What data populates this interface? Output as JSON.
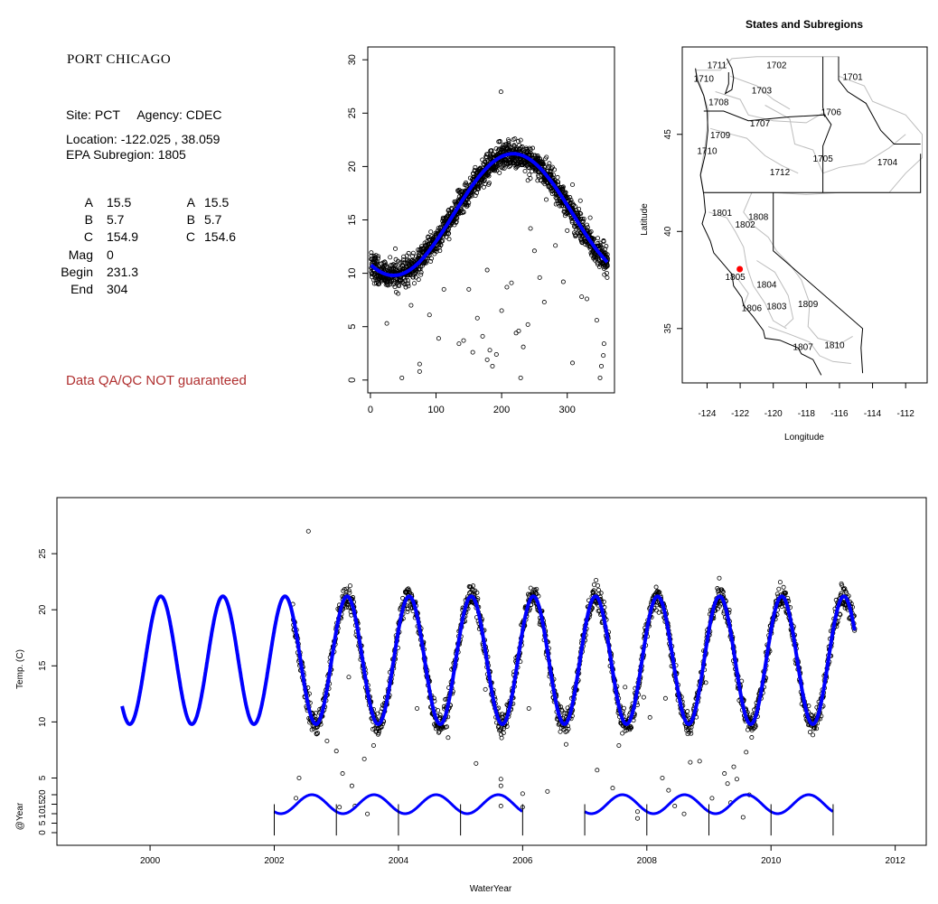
{
  "info": {
    "site_name": "PORT CHICAGO",
    "site_line": "Site: PCT     Agency: CDEC",
    "location_line": "Location: -122.025 , 38.059",
    "subregion_line": "EPA Subregion: 1805",
    "params_left": [
      {
        "label": "A",
        "value": "15.5"
      },
      {
        "label": "B",
        "value": "5.7"
      },
      {
        "label": "C",
        "value": "154.9"
      },
      {
        "label": "Mag",
        "value": "0"
      },
      {
        "label": "Begin",
        "value": "231.3"
      },
      {
        "label": "End",
        "value": "304"
      }
    ],
    "params_right": [
      {
        "label": "A",
        "value": "15.5"
      },
      {
        "label": "B",
        "value": "5.7"
      },
      {
        "label": "C",
        "value": "154.6"
      }
    ],
    "disclaimer": "Data QA/QC NOT guaranteed",
    "disclaimer_color": "#b03030"
  },
  "chart_data": [
    {
      "type": "scatter",
      "title": "",
      "xlabel": "",
      "ylabel": "",
      "xlim": [
        -4,
        372
      ],
      "ylim": [
        -1.2,
        31.2
      ],
      "xticks": [
        0,
        100,
        200,
        300
      ],
      "yticks": [
        0,
        5,
        10,
        15,
        20,
        25,
        30
      ],
      "fit_curve": {
        "A": 15.5,
        "B": 5.7,
        "C": 154.6,
        "color": "#0000ff"
      },
      "outliers": [
        [
          199,
          27
        ],
        [
          75,
          1.5
        ],
        [
          75,
          0.8
        ],
        [
          48,
          0.2
        ],
        [
          62,
          7
        ],
        [
          104,
          3.9
        ],
        [
          112,
          8.5
        ],
        [
          135,
          3.4
        ],
        [
          142,
          3.7
        ],
        [
          156,
          2.6
        ],
        [
          163,
          5.8
        ],
        [
          171,
          4.1
        ],
        [
          178,
          1.9
        ],
        [
          182,
          2.8
        ],
        [
          186,
          1.3
        ],
        [
          192,
          2.4
        ],
        [
          200,
          6.5
        ],
        [
          208,
          8.7
        ],
        [
          215,
          9.1
        ],
        [
          222,
          4.4
        ],
        [
          226,
          4.6
        ],
        [
          229,
          0.2
        ],
        [
          233,
          3.1
        ],
        [
          240,
          5.2
        ],
        [
          244,
          14.2
        ],
        [
          250,
          12.1
        ],
        [
          258,
          9.6
        ],
        [
          265,
          7.3
        ],
        [
          282,
          12.6
        ],
        [
          294,
          9.2
        ],
        [
          300,
          14.0
        ],
        [
          308,
          1.6
        ],
        [
          322,
          7.8
        ],
        [
          330,
          7.6
        ],
        [
          338,
          12.7
        ],
        [
          345,
          5.6
        ],
        [
          350,
          0.2
        ],
        [
          352,
          1.3
        ],
        [
          355,
          2.3
        ],
        [
          25,
          5.3
        ],
        [
          30,
          11.5
        ],
        [
          38,
          12.3
        ],
        [
          56,
          11.0
        ],
        [
          58,
          8.8
        ],
        [
          90,
          6.1
        ],
        [
          120,
          13.2
        ],
        [
          150,
          8.5
        ],
        [
          178,
          10.3
        ],
        [
          240,
          18.7
        ],
        [
          268,
          16.9
        ],
        [
          286,
          17.9
        ],
        [
          308,
          18.3
        ],
        [
          320,
          16.8
        ],
        [
          335,
          15.2
        ],
        [
          340,
          11.4
        ],
        [
          356,
          3.4
        ]
      ]
    },
    {
      "type": "map",
      "title": "States and Subregions",
      "xlabel": "Longitude",
      "ylabel": "Latitude",
      "xlim": [
        -125.5,
        -110.7
      ],
      "ylim": [
        32.2,
        49.5
      ],
      "xticks": [
        -124,
        -122,
        -120,
        -118,
        -116,
        -114,
        -112
      ],
      "yticks": [
        35,
        40,
        45
      ],
      "site": {
        "lon": -122.025,
        "lat": 38.059,
        "color": "#ff0000"
      },
      "subregions": [
        {
          "label": "1711",
          "lon": -123.4,
          "lat": 48.4
        },
        {
          "label": "1702",
          "lon": -119.8,
          "lat": 48.4
        },
        {
          "label": "1701",
          "lon": -115.2,
          "lat": 47.8
        },
        {
          "label": "1710",
          "lon": -124.2,
          "lat": 47.7
        },
        {
          "label": "1703",
          "lon": -120.7,
          "lat": 47.1
        },
        {
          "label": "1708",
          "lon": -123.3,
          "lat": 46.5
        },
        {
          "label": "1706",
          "lon": -116.5,
          "lat": 46.0
        },
        {
          "label": "1707",
          "lon": -120.8,
          "lat": 45.4
        },
        {
          "label": "1709",
          "lon": -123.2,
          "lat": 44.8
        },
        {
          "label": "1710",
          "lon": -124.0,
          "lat": 44.0
        },
        {
          "label": "1705",
          "lon": -117.0,
          "lat": 43.6
        },
        {
          "label": "1704",
          "lon": -113.1,
          "lat": 43.4
        },
        {
          "label": "1712",
          "lon": -119.6,
          "lat": 42.9
        },
        {
          "label": "1801",
          "lon": -123.1,
          "lat": 40.8
        },
        {
          "label": "1808",
          "lon": -120.9,
          "lat": 40.6
        },
        {
          "label": "1802",
          "lon": -121.7,
          "lat": 40.2
        },
        {
          "label": "1805",
          "lon": -122.3,
          "lat": 37.5
        },
        {
          "label": "1804",
          "lon": -120.4,
          "lat": 37.1
        },
        {
          "label": "1806",
          "lon": -121.3,
          "lat": 35.9
        },
        {
          "label": "1803",
          "lon": -119.8,
          "lat": 36.0
        },
        {
          "label": "1809",
          "lon": -117.9,
          "lat": 36.1
        },
        {
          "label": "1807",
          "lon": -118.2,
          "lat": 33.9
        },
        {
          "label": "1810",
          "lon": -116.3,
          "lat": 34.0
        }
      ]
    },
    {
      "type": "scatter",
      "title": "",
      "xlabel": "WaterYear",
      "ylabel": "Temp. (C)",
      "ylabel2": "@Year",
      "xlim": [
        1998.5,
        2012.5
      ],
      "ylim": [
        -1,
        30
      ],
      "xticks": [
        2000,
        2002,
        2004,
        2006,
        2008,
        2010,
        2012
      ],
      "yticks": [
        5,
        10,
        15,
        20,
        25
      ],
      "yticks2": [
        0,
        5,
        10,
        15,
        20
      ],
      "fit_curve": {
        "A": 15.5,
        "B": 5.7,
        "start": 1999.55,
        "end": 2011.35,
        "color": "#0000ff"
      },
      "data_range": [
        2002.3,
        2011.35
      ],
      "segment_starts": [
        2002,
        2003,
        2004,
        2005,
        2006,
        2007,
        2008,
        2009,
        2010,
        2011
      ],
      "outliers": [
        [
          2002.55,
          27
        ],
        [
          2002.35,
          3.2
        ],
        [
          2002.4,
          5
        ],
        [
          2002.7,
          9
        ],
        [
          2002.85,
          8.3
        ],
        [
          2003.0,
          7.4
        ],
        [
          2003.05,
          2.4
        ],
        [
          2003.1,
          5.4
        ],
        [
          2003.25,
          4.3
        ],
        [
          2003.3,
          2.5
        ],
        [
          2003.45,
          6.7
        ],
        [
          2003.5,
          1.8
        ],
        [
          2003.6,
          7.9
        ],
        [
          2004.8,
          8.6
        ],
        [
          2005.25,
          6.3
        ],
        [
          2005.65,
          4.9
        ],
        [
          2005.65,
          4.3
        ],
        [
          2005.65,
          2.5
        ],
        [
          2005.75,
          9.6
        ],
        [
          2006.0,
          3.6
        ],
        [
          2006.0,
          2.4
        ],
        [
          2006.4,
          3.8
        ],
        [
          2006.7,
          8.0
        ],
        [
          2007.2,
          5.7
        ],
        [
          2007.45,
          4.1
        ],
        [
          2007.55,
          7.9
        ],
        [
          2007.85,
          2.0
        ],
        [
          2007.85,
          1.4
        ],
        [
          2007.95,
          12.2
        ],
        [
          2008.05,
          10.4
        ],
        [
          2008.25,
          5.0
        ],
        [
          2008.35,
          3.9
        ],
        [
          2008.45,
          2.5
        ],
        [
          2008.6,
          1.8
        ],
        [
          2008.7,
          6.4
        ],
        [
          2008.85,
          6.5
        ],
        [
          2009.05,
          3.2
        ],
        [
          2009.25,
          5.4
        ],
        [
          2009.3,
          4.5
        ],
        [
          2009.35,
          2.8
        ],
        [
          2009.45,
          4.9
        ],
        [
          2009.55,
          1.5
        ],
        [
          2009.6,
          7.3
        ],
        [
          2009.65,
          3.5
        ],
        [
          2009.8,
          12.1
        ],
        [
          2003.2,
          14.0
        ],
        [
          2004.3,
          11.2
        ],
        [
          2005.4,
          12.9
        ],
        [
          2006.1,
          11.2
        ],
        [
          2007.65,
          13.1
        ],
        [
          2008.3,
          12.1
        ],
        [
          2008.95,
          13.5
        ],
        [
          2009.4,
          6.0
        ]
      ]
    }
  ]
}
